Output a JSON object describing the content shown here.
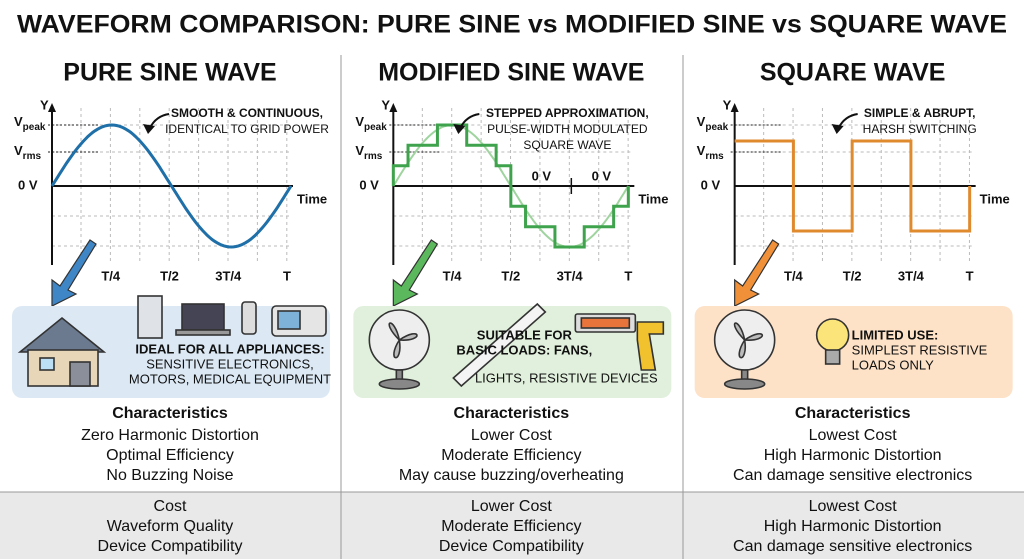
{
  "title": "WAVEFORM COMPARISON: PURE SINE vs MODIFIED SINE vs SQUARE WAVE",
  "panels": [
    {
      "heading": "PURE SINE WAVE",
      "axis": {
        "y": "Y",
        "vpeak": "V",
        "vpeak_sub": "peak",
        "vrms": "V",
        "vrms_sub": "rms",
        "zero": "0 V",
        "time": "Time",
        "ticks": [
          "T/4",
          "T/2",
          "3T/4",
          "T"
        ],
        "extra": []
      },
      "annotation": [
        "SMOOTH & CONTINUOUS,",
        "IDENTICAL TO GRID POWER"
      ],
      "use_title": [
        "IDEAL FOR ALL APPLIANCES:"
      ],
      "use_lines": [
        "SENSITIVE ELECTRONICS,",
        "MOTORS, MEDICAL EQUIPMENT"
      ],
      "characteristics_title": "Characteristics",
      "characteristics": [
        "Zero Harmonic Distortion",
        "Optimal Efficiency",
        "No Buzzing Noise"
      ],
      "footer": [
        "Cost",
        "Waveform Quality",
        "Device Compatibility"
      ]
    },
    {
      "heading": "MODIFIED SINE WAVE",
      "axis": {
        "y": "Y",
        "vpeak": "V",
        "vpeak_sub": "peak",
        "vrms": "V",
        "vrms_sub": "rms",
        "zero": "0 V",
        "time": "Time",
        "ticks": [
          "T/4",
          "T/2",
          "3T/4",
          "T"
        ],
        "extra": [
          "0 V",
          "0 V"
        ]
      },
      "annotation": [
        "STEPPED APPROXIMATION,",
        "PULSE-WIDTH MODULATED",
        "SQUARE WAVE"
      ],
      "use_title": [
        "SUITABLE FOR",
        "BASIC LOADS: FANS,"
      ],
      "use_lines": [
        "LIGHTS, RESISTIVE DEVICES"
      ],
      "characteristics_title": "Characteristics",
      "characteristics": [
        "Lower Cost",
        "Moderate Efficiency",
        "May cause buzzing/overheating"
      ],
      "footer": [
        "Lower Cost",
        "Moderate Efficiency",
        "Device Compatibility"
      ]
    },
    {
      "heading": "SQUARE WAVE",
      "axis": {
        "y": "Y",
        "vpeak": "V",
        "vpeak_sub": "peak",
        "vrms": "V",
        "vrms_sub": "rms",
        "zero": "0 V",
        "time": "Time",
        "ticks": [
          "T/4",
          "T/2",
          "3T/4",
          "T"
        ],
        "extra": []
      },
      "annotation": [
        "SIMPLE & ABRUPT,",
        "HARSH SWITCHING"
      ],
      "use_title": [
        "LIMITED USE:"
      ],
      "use_lines": [
        "SIMPLEST RESISTIVE",
        "LOADS ONLY"
      ],
      "characteristics_title": "Characteristics",
      "characteristics": [
        "Lowest Cost",
        "High Harmonic Distortion",
        "Can damage sensitive electronics"
      ],
      "footer": [
        "Lowest Cost",
        "High Harmonic Distortion",
        "Can damage sensitive electronics"
      ]
    }
  ]
}
